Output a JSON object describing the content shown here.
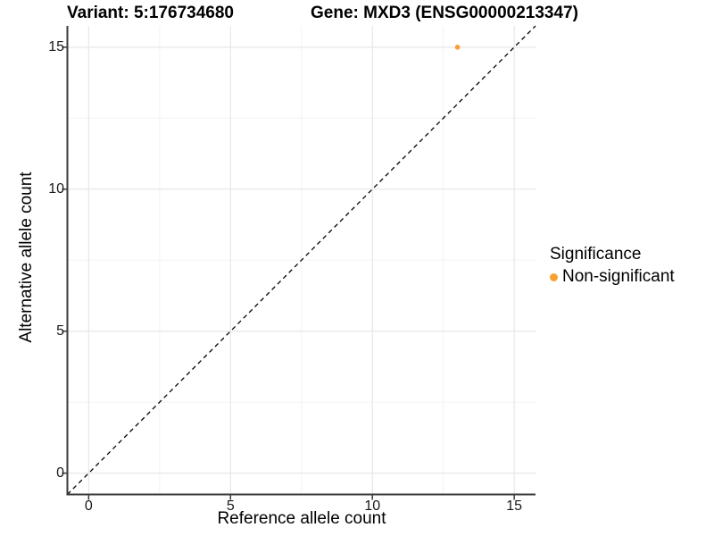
{
  "title": {
    "variant": "Variant: 5:176734680",
    "gene": "Gene: MXD3 (ENSG00000213347)"
  },
  "axes": {
    "x": {
      "label": "Reference allele count",
      "tick_labels": [
        "0",
        "5",
        "10",
        "15"
      ]
    },
    "y": {
      "label": "Alternative allele count",
      "tick_labels": [
        "0",
        "5",
        "10",
        "15"
      ]
    }
  },
  "legend": {
    "title": "Significance",
    "position": "right",
    "items": [
      {
        "label": "Non-significant",
        "color": "#FAA032",
        "marker": "dot"
      }
    ]
  },
  "colors": {
    "background": "#ffffff",
    "point_orange": "#FAA032",
    "grid_major": "#e7e7e7",
    "grid_minor": "#f3f3f3",
    "axis_line": "#3a3a3a",
    "reference_line": "#000000",
    "tick_text": "#1a1a1a"
  },
  "chart_data": {
    "type": "scatter",
    "title": "Variant: 5:176734680   Gene: MXD3 (ENSG00000213347)",
    "xlabel": "Reference allele count",
    "ylabel": "Alternative allele count",
    "xlim": [
      -0.75,
      15.75
    ],
    "ylim": [
      -0.75,
      15.75
    ],
    "x_major_ticks": [
      0,
      5,
      10,
      15
    ],
    "y_major_ticks": [
      0,
      5,
      10,
      15
    ],
    "x_minor_ticks": [
      2.5,
      7.5,
      12.5
    ],
    "y_minor_ticks": [
      2.5,
      7.5,
      12.5
    ],
    "grid": true,
    "legend_position": "right",
    "series": [
      {
        "name": "Non-significant",
        "color": "#FAA032",
        "marker": "circle",
        "points": [
          {
            "x": 13,
            "y": 15
          }
        ]
      }
    ],
    "reference_line": {
      "type": "identity",
      "description": "y = x diagonal",
      "style": "dashed",
      "color": "#000000"
    }
  }
}
